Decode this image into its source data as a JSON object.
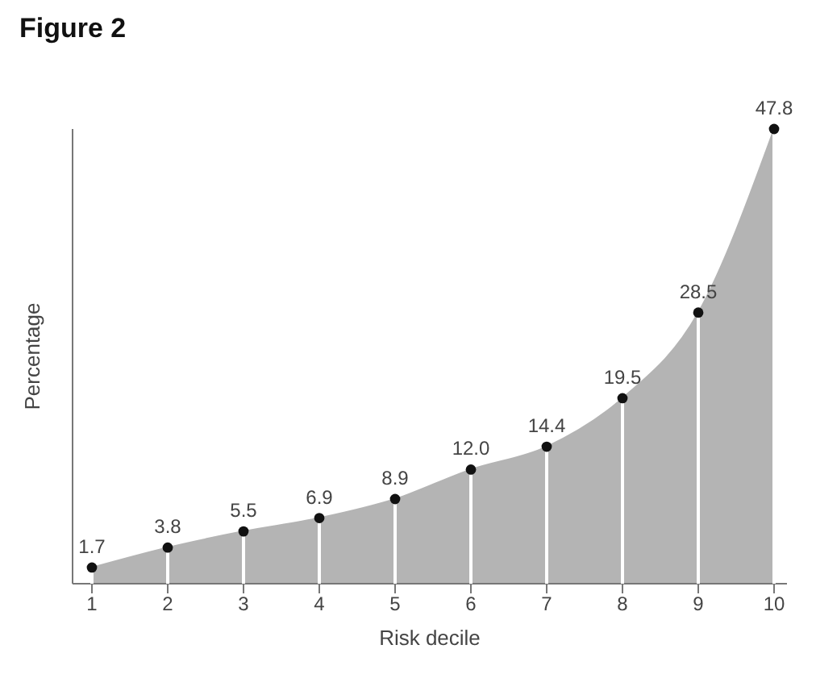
{
  "chart_data": {
    "type": "area",
    "title": "Figure 2",
    "xlabel": "Risk decile",
    "ylabel": "Percentage",
    "categories": [
      "1",
      "2",
      "3",
      "4",
      "5",
      "6",
      "7",
      "8",
      "9",
      "10"
    ],
    "series": [
      {
        "color": "#b4b4b4",
        "values": [
          1.7,
          3.8,
          5.5,
          6.9,
          8.9,
          12.0,
          14.4,
          19.5,
          28.5,
          47.8
        ],
        "value_labels": [
          "1.7",
          "3.8",
          "5.5",
          "6.9",
          "8.9",
          "12.0",
          "14.4",
          "19.5",
          "28.5",
          "47.8"
        ]
      }
    ],
    "marker": "circle",
    "tick_labels": "x"
  }
}
